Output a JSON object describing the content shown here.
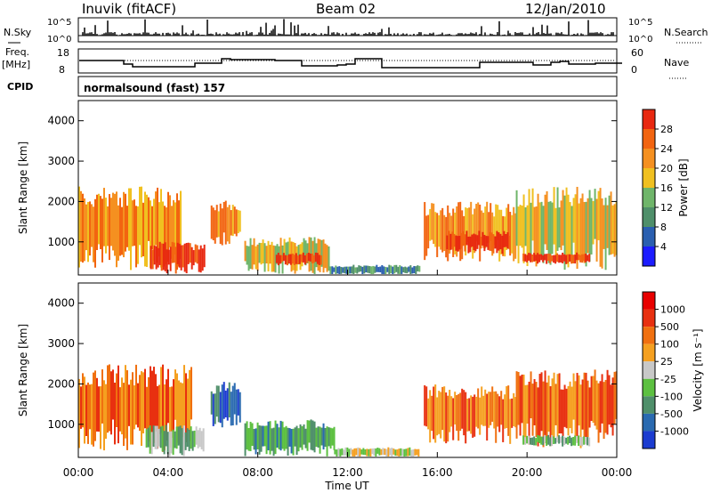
{
  "header": {
    "station": "Inuvik (fitACF)",
    "beam": "Beam 02",
    "date": "12/Jan/2010"
  },
  "summary": {
    "left_labels": {
      "nsky": "N.Sky",
      "freq_top": "Freq.",
      "freq_unit": "[MHz]",
      "cpid": "CPID"
    },
    "right_labels": {
      "nsearch": "N.Search",
      "nave": "Nave"
    },
    "ticks": {
      "nsky_top": "10^5",
      "nsky_bottom": "10^0",
      "freq_top": "18",
      "freq_bottom": "8",
      "nave_top": "60",
      "nave_bottom": "0"
    },
    "cpid_text": "normalsound (fast) 157"
  },
  "chart_data": [
    {
      "type": "heatmap",
      "title": "",
      "xlabel": "Time UT",
      "ylabel": "Slant Range [km]",
      "x_ticks": [
        "00:00",
        "04:00",
        "08:00",
        "12:00",
        "16:00",
        "20:00",
        "00:00"
      ],
      "y_ticks": [
        "1000",
        "2000",
        "3000",
        "4000"
      ],
      "xlim_hours": [
        0,
        24
      ],
      "ylim_km": [
        180,
        4500
      ],
      "colorbar": {
        "label": "Power [dB]",
        "ticks": [
          "4",
          "8",
          "12",
          "16",
          "20",
          "24",
          "28"
        ],
        "colors": [
          "#1c1cff",
          "#2a5fb0",
          "#4f8f6a",
          "#6fb56a",
          "#f0c020",
          "#f59020",
          "#f26410",
          "#e82810"
        ]
      },
      "regions": [
        {
          "t0": 0.0,
          "t1": 4.6,
          "r0": 300,
          "r1": 2100,
          "level": 5
        },
        {
          "t0": 3.2,
          "t1": 5.6,
          "r0": 200,
          "r1": 900,
          "level": 7
        },
        {
          "t0": 5.9,
          "t1": 7.2,
          "r0": 900,
          "r1": 1900,
          "level": 5
        },
        {
          "t0": 7.4,
          "t1": 11.2,
          "r0": 200,
          "r1": 1000,
          "level": 4
        },
        {
          "t0": 8.8,
          "t1": 10.8,
          "r0": 400,
          "r1": 700,
          "level": 7
        },
        {
          "t0": 11.2,
          "t1": 15.2,
          "r0": 180,
          "r1": 400,
          "level": 2
        },
        {
          "t0": 15.4,
          "t1": 19.5,
          "r0": 500,
          "r1": 1800,
          "level": 5
        },
        {
          "t0": 16.4,
          "t1": 19.2,
          "r0": 700,
          "r1": 1200,
          "level": 7
        },
        {
          "t0": 19.5,
          "t1": 24.0,
          "r0": 300,
          "r1": 2100,
          "level": 4
        },
        {
          "t0": 19.8,
          "t1": 22.8,
          "r0": 450,
          "r1": 700,
          "level": 7
        }
      ]
    },
    {
      "type": "heatmap",
      "title": "",
      "xlabel": "Time UT",
      "ylabel": "Slant Range [km]",
      "x_ticks": [
        "00:00",
        "04:00",
        "08:00",
        "12:00",
        "16:00",
        "20:00",
        "00:00"
      ],
      "y_ticks": [
        "1000",
        "2000",
        "3000",
        "4000"
      ],
      "xlim_hours": [
        0,
        24
      ],
      "ylim_km": [
        180,
        4500
      ],
      "colorbar": {
        "label": "Velocity [m s⁻¹]",
        "ticks": [
          "1000",
          "500",
          "100",
          "25",
          "-25",
          "-100",
          "-500",
          "-1000"
        ],
        "colors": [
          "#1c3cd0",
          "#2a6ab0",
          "#4f8f6a",
          "#5cc040",
          "#c8c8c8",
          "#f5a020",
          "#f07010",
          "#e83010",
          "#e80000"
        ]
      },
      "regions": [
        {
          "t0": 0.0,
          "t1": 5.0,
          "r0": 300,
          "r1": 2200,
          "level": 6
        },
        {
          "t0": 3.0,
          "t1": 5.6,
          "r0": 200,
          "r1": 900,
          "level": 3
        },
        {
          "t0": 5.9,
          "t1": 7.2,
          "r0": 900,
          "r1": 1900,
          "level": 1
        },
        {
          "t0": 7.4,
          "t1": 11.4,
          "r0": 200,
          "r1": 1000,
          "level": 2
        },
        {
          "t0": 11.4,
          "t1": 15.2,
          "r0": 180,
          "r1": 400,
          "level": 4
        },
        {
          "t0": 15.4,
          "t1": 19.5,
          "r0": 500,
          "r1": 1800,
          "level": 6
        },
        {
          "t0": 19.5,
          "t1": 24.0,
          "r0": 400,
          "r1": 2100,
          "level": 6
        },
        {
          "t0": 19.8,
          "t1": 22.8,
          "r0": 450,
          "r1": 700,
          "level": 3
        }
      ]
    }
  ]
}
